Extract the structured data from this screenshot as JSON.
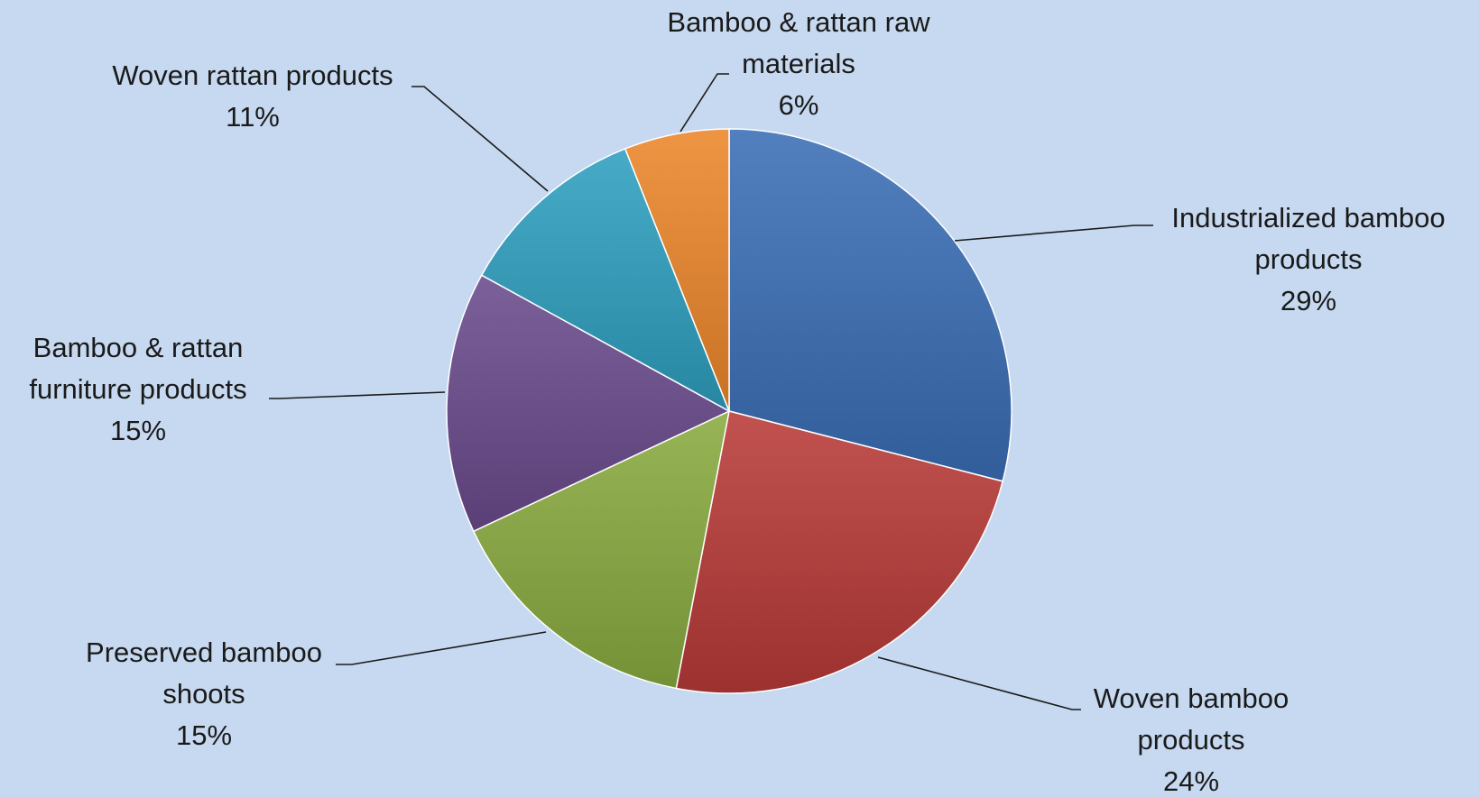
{
  "chart_data": {
    "type": "pie",
    "title": "",
    "slices": [
      {
        "label_lines": [
          "Industrialized bamboo",
          "products"
        ],
        "value": 29,
        "value_label": "29%",
        "color": "#3a6db5"
      },
      {
        "label_lines": [
          "Woven bamboo",
          "products"
        ],
        "value": 24,
        "value_label": "24%",
        "color": "#b83a37"
      },
      {
        "label_lines": [
          "Preserved bamboo",
          "shoots"
        ],
        "value": 15,
        "value_label": "15%",
        "color": "#89ab3f"
      },
      {
        "label_lines": [
          "Bamboo & rattan",
          "furniture products"
        ],
        "value": 15,
        "value_label": "15%",
        "color": "#6a4a8c"
      },
      {
        "label_lines": [
          "Woven rattan products"
        ],
        "value": 11,
        "value_label": "11%",
        "color": "#2e9fbf"
      },
      {
        "label_lines": [
          "Bamboo & rattan raw",
          "materials"
        ],
        "value": 6,
        "value_label": "6%",
        "color": "#ec862a"
      }
    ],
    "start_angle_deg": 0,
    "direction": "clockwise",
    "legend": "none",
    "data_labels": "outside with leader lines"
  }
}
